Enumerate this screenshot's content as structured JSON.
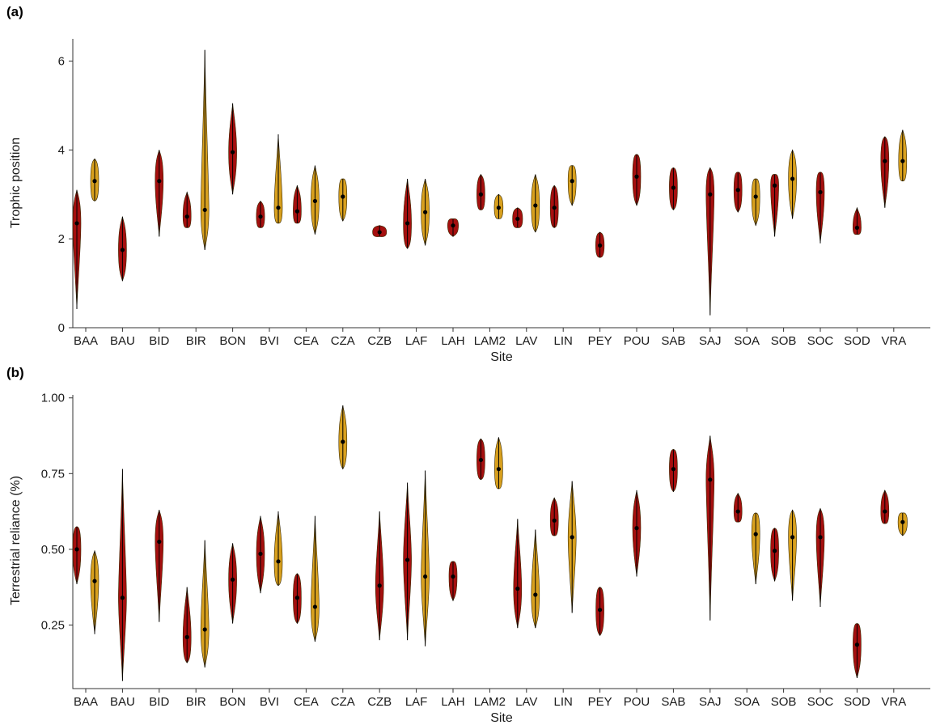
{
  "colors": {
    "red": "#a50f0f",
    "gold": "#d8a01e",
    "point": "#000000"
  },
  "panels": [
    {
      "label": "(a)"
    },
    {
      "label": "(b)"
    }
  ],
  "chart_data": [
    {
      "type": "violin",
      "panel": "(a)",
      "xlabel": "Site",
      "ylabel": "Trophic position",
      "ylim": [
        0,
        6.5
      ],
      "yticks": [
        0,
        2,
        4,
        6
      ],
      "ytick_labels": [
        "0",
        "2",
        "4",
        "6"
      ],
      "categories": [
        "BAA",
        "BAU",
        "BID",
        "BIR",
        "BON",
        "BVI",
        "CEA",
        "CZA",
        "CZB",
        "LAF",
        "LAH",
        "LAM2",
        "LAV",
        "LIN",
        "PEY",
        "POU",
        "SAB",
        "SAJ",
        "SOA",
        "SOB",
        "SOC",
        "SOD",
        "VRA"
      ],
      "series": [
        {
          "color": "red",
          "values": [
            {
              "site": "BAA",
              "median": 2.35,
              "min": 0.42,
              "max": 3.1
            },
            {
              "site": "BAU",
              "median": 1.75,
              "min": 1.05,
              "max": 2.5
            },
            {
              "site": "BID",
              "median": 3.3,
              "min": 2.05,
              "max": 4.0
            },
            {
              "site": "BIR",
              "median": 2.5,
              "min": 2.25,
              "max": 3.05
            },
            {
              "site": "BON",
              "median": 3.95,
              "min": 3.0,
              "max": 5.05
            },
            {
              "site": "BVI",
              "median": 2.5,
              "min": 2.25,
              "max": 2.85
            },
            {
              "site": "CEA",
              "median": 2.62,
              "min": 2.35,
              "max": 3.2
            },
            {
              "site": "CZB",
              "median": 2.15,
              "min": 2.05,
              "max": 2.3
            },
            {
              "site": "LAF",
              "median": 2.35,
              "min": 1.78,
              "max": 3.35
            },
            {
              "site": "LAH",
              "median": 2.3,
              "min": 2.05,
              "max": 2.45
            },
            {
              "site": "LAM2",
              "median": 3.0,
              "min": 2.65,
              "max": 3.45
            },
            {
              "site": "LAV",
              "median": 2.45,
              "min": 2.25,
              "max": 2.7
            },
            {
              "site": "LIN",
              "median": 2.7,
              "min": 2.25,
              "max": 3.2
            },
            {
              "site": "PEY",
              "median": 1.85,
              "min": 1.58,
              "max": 2.15
            },
            {
              "site": "POU",
              "median": 3.4,
              "min": 2.75,
              "max": 3.9
            },
            {
              "site": "SAB",
              "median": 3.15,
              "min": 2.65,
              "max": 3.6
            },
            {
              "site": "SAJ",
              "median": 3.0,
              "min": 0.28,
              "max": 3.6
            },
            {
              "site": "SOA",
              "median": 3.1,
              "min": 2.6,
              "max": 3.5
            },
            {
              "site": "SOB",
              "median": 3.2,
              "min": 2.05,
              "max": 3.45
            },
            {
              "site": "SOC",
              "median": 3.05,
              "min": 1.9,
              "max": 3.5
            },
            {
              "site": "SOD",
              "median": 2.25,
              "min": 2.1,
              "max": 2.7
            },
            {
              "site": "VRA",
              "median": 3.75,
              "min": 2.7,
              "max": 4.3
            }
          ]
        },
        {
          "color": "gold",
          "values": [
            {
              "site": "BAA",
              "median": 3.3,
              "min": 2.85,
              "max": 3.8
            },
            {
              "site": "BIR",
              "median": 2.65,
              "min": 1.75,
              "max": 6.25
            },
            {
              "site": "BVI",
              "median": 2.7,
              "min": 2.35,
              "max": 4.35
            },
            {
              "site": "CEA",
              "median": 2.85,
              "min": 2.1,
              "max": 3.65
            },
            {
              "site": "CZA",
              "median": 2.95,
              "min": 2.4,
              "max": 3.35
            },
            {
              "site": "LAF",
              "median": 2.6,
              "min": 1.85,
              "max": 3.35
            },
            {
              "site": "LAM2",
              "median": 2.7,
              "min": 2.45,
              "max": 3.0
            },
            {
              "site": "LAV",
              "median": 2.75,
              "min": 2.15,
              "max": 3.45
            },
            {
              "site": "LIN",
              "median": 3.3,
              "min": 2.75,
              "max": 3.65
            },
            {
              "site": "SOA",
              "median": 2.95,
              "min": 2.3,
              "max": 3.35
            },
            {
              "site": "SOB",
              "median": 3.35,
              "min": 2.45,
              "max": 4.0
            },
            {
              "site": "VRA",
              "median": 3.75,
              "min": 3.3,
              "max": 4.45
            }
          ]
        }
      ]
    },
    {
      "type": "violin",
      "panel": "(b)",
      "xlabel": "Site",
      "ylabel": "Terrestrial reliance (%)",
      "ylim": [
        0.04,
        1.01
      ],
      "yticks": [
        0.25,
        0.5,
        0.75,
        1.0
      ],
      "ytick_labels": [
        "0.25",
        "0.50",
        "0.75",
        "1.00"
      ],
      "categories": [
        "BAA",
        "BAU",
        "BID",
        "BIR",
        "BON",
        "BVI",
        "CEA",
        "CZA",
        "CZB",
        "LAF",
        "LAH",
        "LAM2",
        "LAV",
        "LIN",
        "PEY",
        "POU",
        "SAB",
        "SAJ",
        "SOA",
        "SOB",
        "SOC",
        "SOD",
        "VRA"
      ],
      "series": [
        {
          "color": "red",
          "values": [
            {
              "site": "BAA",
              "median": 0.5,
              "min": 0.385,
              "max": 0.575
            },
            {
              "site": "BAU",
              "median": 0.34,
              "min": 0.065,
              "max": 0.765
            },
            {
              "site": "BID",
              "median": 0.525,
              "min": 0.26,
              "max": 0.63
            },
            {
              "site": "BIR",
              "median": 0.21,
              "min": 0.125,
              "max": 0.375
            },
            {
              "site": "BON",
              "median": 0.4,
              "min": 0.255,
              "max": 0.52
            },
            {
              "site": "BVI",
              "median": 0.485,
              "min": 0.355,
              "max": 0.61
            },
            {
              "site": "CEA",
              "median": 0.34,
              "min": 0.255,
              "max": 0.42
            },
            {
              "site": "CZB",
              "median": 0.38,
              "min": 0.2,
              "max": 0.625
            },
            {
              "site": "LAF",
              "median": 0.465,
              "min": 0.2,
              "max": 0.72
            },
            {
              "site": "LAH",
              "median": 0.41,
              "min": 0.33,
              "max": 0.46
            },
            {
              "site": "LAM2",
              "median": 0.795,
              "min": 0.73,
              "max": 0.865
            },
            {
              "site": "LAV",
              "median": 0.37,
              "min": 0.24,
              "max": 0.6
            },
            {
              "site": "LIN",
              "median": 0.595,
              "min": 0.545,
              "max": 0.67
            },
            {
              "site": "PEY",
              "median": 0.3,
              "min": 0.215,
              "max": 0.375
            },
            {
              "site": "POU",
              "median": 0.57,
              "min": 0.41,
              "max": 0.695
            },
            {
              "site": "SAB",
              "median": 0.765,
              "min": 0.69,
              "max": 0.83
            },
            {
              "site": "SAJ",
              "median": 0.73,
              "min": 0.265,
              "max": 0.875
            },
            {
              "site": "SOA",
              "median": 0.625,
              "min": 0.59,
              "max": 0.685
            },
            {
              "site": "SOB",
              "median": 0.495,
              "min": 0.395,
              "max": 0.57
            },
            {
              "site": "SOC",
              "median": 0.54,
              "min": 0.31,
              "max": 0.635
            },
            {
              "site": "SOD",
              "median": 0.185,
              "min": 0.075,
              "max": 0.255
            },
            {
              "site": "VRA",
              "median": 0.625,
              "min": 0.585,
              "max": 0.695
            }
          ]
        },
        {
          "color": "gold",
          "values": [
            {
              "site": "BAA",
              "median": 0.395,
              "min": 0.22,
              "max": 0.495
            },
            {
              "site": "BIR",
              "median": 0.235,
              "min": 0.11,
              "max": 0.53
            },
            {
              "site": "BVI",
              "median": 0.46,
              "min": 0.38,
              "max": 0.625
            },
            {
              "site": "CEA",
              "median": 0.31,
              "min": 0.195,
              "max": 0.61
            },
            {
              "site": "CZA",
              "median": 0.855,
              "min": 0.765,
              "max": 0.975
            },
            {
              "site": "LAF",
              "median": 0.41,
              "min": 0.18,
              "max": 0.76
            },
            {
              "site": "LAM2",
              "median": 0.765,
              "min": 0.7,
              "max": 0.87
            },
            {
              "site": "LAV",
              "median": 0.35,
              "min": 0.24,
              "max": 0.565
            },
            {
              "site": "LIN",
              "median": 0.54,
              "min": 0.29,
              "max": 0.725
            },
            {
              "site": "SOA",
              "median": 0.55,
              "min": 0.385,
              "max": 0.62
            },
            {
              "site": "SOB",
              "median": 0.54,
              "min": 0.33,
              "max": 0.63
            },
            {
              "site": "VRA",
              "median": 0.59,
              "min": 0.545,
              "max": 0.62
            }
          ]
        }
      ]
    }
  ]
}
